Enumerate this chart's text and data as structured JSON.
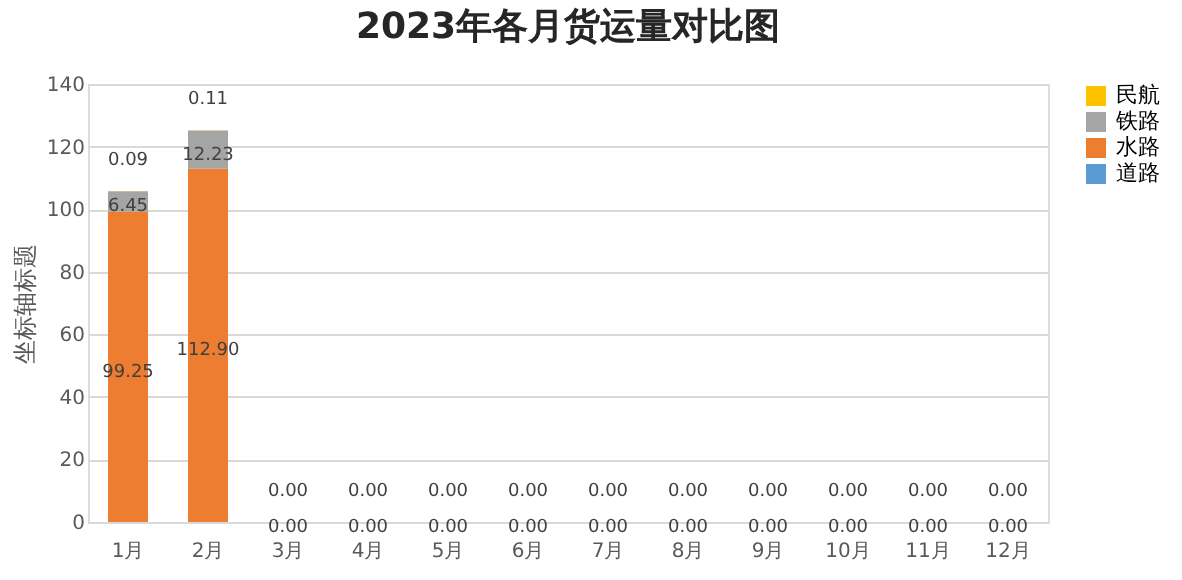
{
  "chart_data": {
    "type": "bar",
    "title": "2023年各月货运量对比图",
    "ylabel": "坐标轴标题",
    "categories": [
      "1月",
      "2月",
      "3月",
      "4月",
      "5月",
      "6月",
      "7月",
      "8月",
      "9月",
      "10月",
      "11月",
      "12月"
    ],
    "stacked": true,
    "series": [
      {
        "name": "道路",
        "color": "#5b9bd5",
        "values": [
          0,
          0,
          0,
          0,
          0,
          0,
          0,
          0,
          0,
          0,
          0,
          0
        ],
        "value_labels": [
          null,
          null,
          null,
          null,
          null,
          null,
          null,
          null,
          null,
          null,
          null,
          null
        ]
      },
      {
        "name": "水路",
        "color": "#ed7d31",
        "values": [
          99.25,
          112.9,
          0,
          0,
          0,
          0,
          0,
          0,
          0,
          0,
          0,
          0
        ],
        "value_labels": [
          "99.25",
          "112.90",
          "0.00",
          "0.00",
          "0.00",
          "0.00",
          "0.00",
          "0.00",
          "0.00",
          "0.00",
          "0.00",
          "0.00"
        ]
      },
      {
        "name": "铁路",
        "color": "#a5a5a5",
        "values": [
          6.45,
          12.23,
          0,
          0,
          0,
          0,
          0,
          0,
          0,
          0,
          0,
          0
        ],
        "value_labels": [
          "6.45",
          "12.23",
          null,
          null,
          null,
          null,
          null,
          null,
          null,
          null,
          null,
          null
        ]
      },
      {
        "name": "民航",
        "color": "#ffc000",
        "values": [
          0.09,
          0.11,
          0,
          0,
          0,
          0,
          0,
          0,
          0,
          0,
          0,
          0
        ],
        "value_labels": [
          "0.09",
          "0.11",
          "0.00",
          "0.00",
          "0.00",
          "0.00",
          "0.00",
          "0.00",
          "0.00",
          "0.00",
          "0.00",
          "0.00"
        ]
      }
    ],
    "ylim": [
      0,
      140
    ],
    "yticks": [
      0,
      20,
      40,
      60,
      80,
      100,
      120,
      140
    ],
    "grid": "y",
    "legend": "right"
  }
}
